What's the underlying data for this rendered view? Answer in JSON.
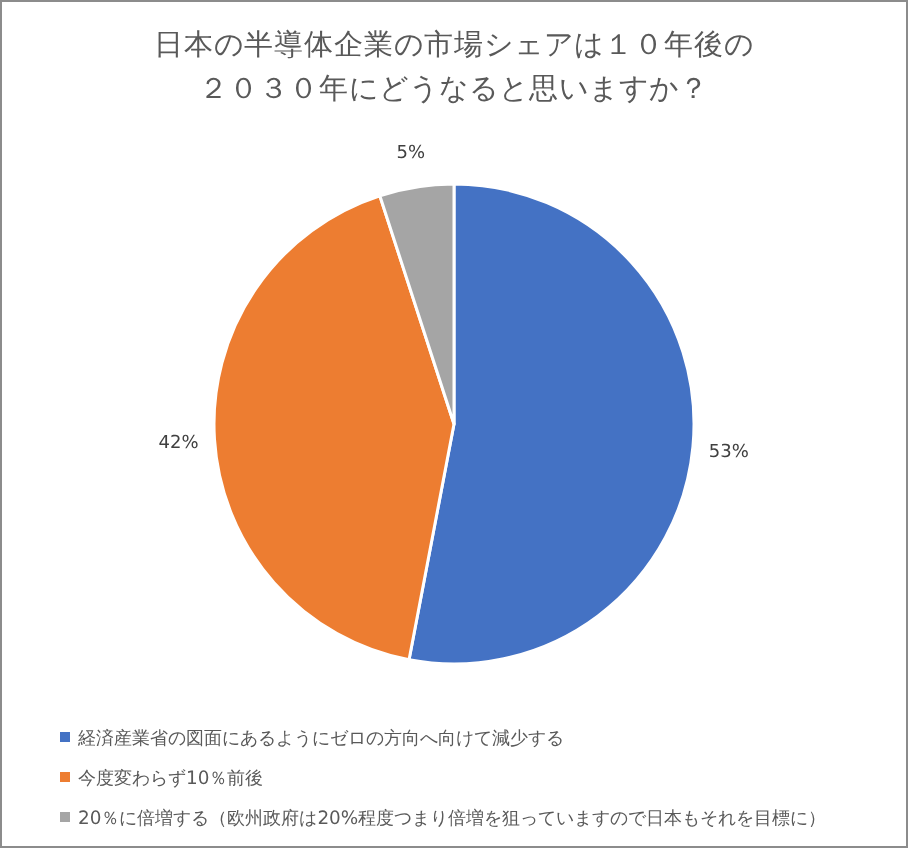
{
  "chart_data": {
    "type": "pie",
    "title": "日本の半導体企業の市場シェアは１０年後の２０３０年にどうなると思いますか？",
    "categories": [
      "経済産業省の図面にあるようにゼロの方向へ向けて減少する",
      "今度変わらず10％前後",
      "20％に倍増する（欧州政府は20%程度つまり倍増を狙っていますので日本もそれを目標に）"
    ],
    "values": [
      53,
      42,
      5
    ],
    "value_labels": [
      "53%",
      "42%",
      "5%"
    ],
    "colors": [
      "#4472c4",
      "#ed7d31",
      "#a5a5a5"
    ],
    "legend": "bottom"
  }
}
